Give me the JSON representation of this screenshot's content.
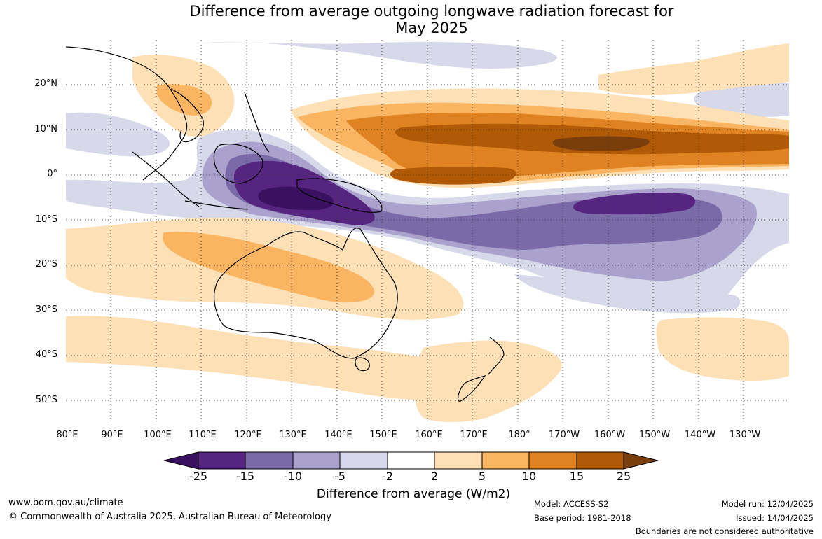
{
  "title": {
    "line1": "Difference from average outgoing longwave radiation forecast for",
    "line2": "May 2025"
  },
  "map": {
    "lat_labels": [
      "20°N",
      "10°N",
      "0°",
      "10°S",
      "20°S",
      "30°S",
      "40°S",
      "50°S"
    ],
    "lon_labels": [
      "80°E",
      "90°E",
      "100°E",
      "110°E",
      "120°E",
      "130°E",
      "140°E",
      "150°E",
      "160°E",
      "170°E",
      "180°",
      "170°W",
      "160°W",
      "150°W",
      "140°W",
      "130°W"
    ],
    "lat_range": [
      -55,
      30
    ],
    "lon_range": [
      80,
      240
    ]
  },
  "colorbar": {
    "ticks": [
      "-25",
      "-15",
      "-10",
      "-5",
      "-2",
      "2",
      "5",
      "10",
      "15",
      "25"
    ],
    "colors": [
      "#3a1060",
      "#552580",
      "#7b6aa8",
      "#aaa2cc",
      "#d7d8ea",
      "#ffffff",
      "#fde0b6",
      "#f9b562",
      "#df8222",
      "#b05a08",
      "#7a3d0c"
    ],
    "title": "Difference from average (W/m2)"
  },
  "footer": {
    "website": "www.bom.gov.au/climate",
    "copyright": "© Commonwealth of Australia 2025, Australian Bureau of Meteorology",
    "model": "Model: ACCESS-S2",
    "base_period": "Base period: 1981-2018",
    "model_run": "Model run: 12/04/2025",
    "issued": "Issued: 14/04/2025",
    "boundaries": "Boundaries are not considered authoritative"
  }
}
